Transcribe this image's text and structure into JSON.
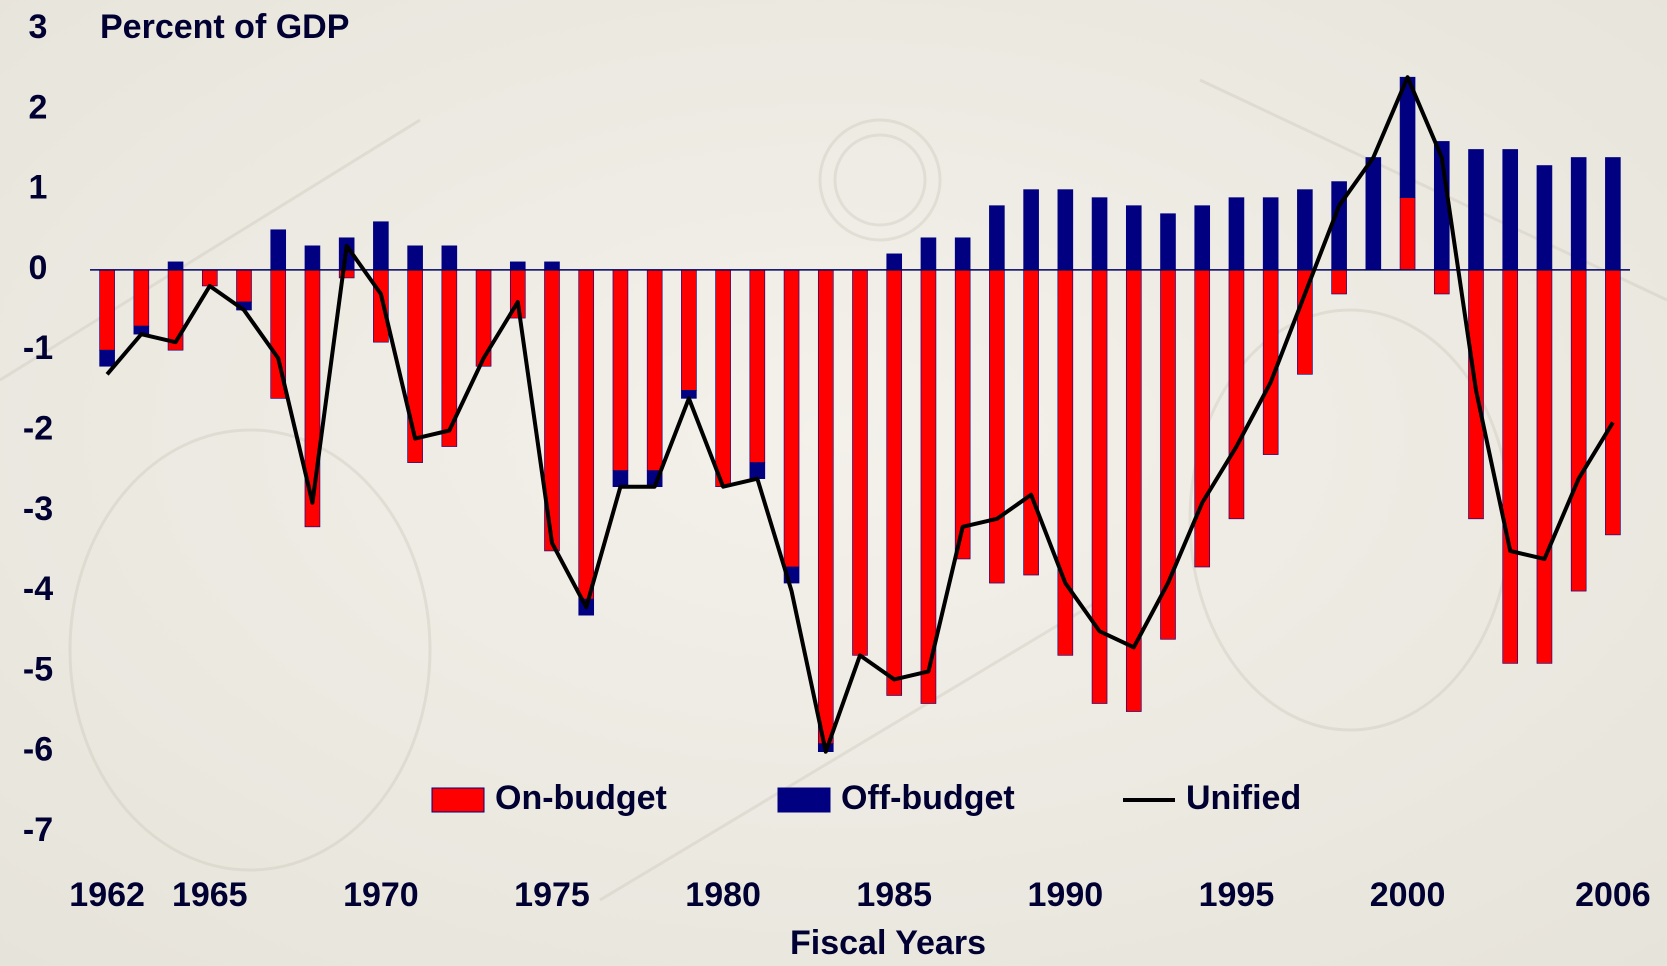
{
  "chart_data": {
    "type": "bar",
    "stacked": true,
    "title": "Percent of GDP",
    "x_label": "Fiscal Years",
    "x": [
      1962,
      1963,
      1964,
      1965,
      1966,
      1967,
      1968,
      1969,
      1970,
      1971,
      1972,
      1973,
      1974,
      1975,
      1976,
      1977,
      1978,
      1979,
      1980,
      1981,
      1982,
      1983,
      1984,
      1985,
      1986,
      1987,
      1988,
      1989,
      1990,
      1991,
      1992,
      1993,
      1994,
      1995,
      1996,
      1997,
      1998,
      1999,
      2000,
      2001,
      2002,
      2003,
      2004,
      2005,
      2006
    ],
    "series": [
      {
        "name": "On-budget",
        "color": "#ff0000",
        "type": "bar",
        "values": [
          -1.0,
          -0.7,
          -1.0,
          -0.2,
          -0.4,
          -1.6,
          -3.2,
          -0.1,
          -0.9,
          -2.4,
          -2.2,
          -1.2,
          -0.6,
          -3.5,
          -4.1,
          -2.5,
          -2.5,
          -1.5,
          -2.7,
          -2.4,
          -3.7,
          -5.9,
          -4.8,
          -5.3,
          -5.4,
          -3.6,
          -3.9,
          -3.8,
          -4.8,
          -5.4,
          -5.5,
          -4.6,
          -3.7,
          -3.1,
          -2.3,
          -1.3,
          -0.3,
          0,
          0.9,
          -0.3,
          -3.1,
          -4.9,
          -4.9,
          -4.0,
          -3.3
        ]
      },
      {
        "name": "Off-budget",
        "color": "#000080",
        "type": "bar",
        "values": [
          -0.2,
          -0.1,
          0.1,
          0,
          -0.1,
          0.5,
          0.3,
          0.4,
          0.6,
          0.3,
          0.3,
          0,
          0.1,
          0.1,
          -0.2,
          -0.2,
          -0.2,
          -0.1,
          0,
          -0.2,
          -0.2,
          -0.1,
          0,
          0.2,
          0.4,
          0.4,
          0.8,
          1.0,
          1.0,
          0.9,
          0.8,
          0.7,
          0.8,
          0.9,
          0.9,
          1.0,
          1.1,
          1.4,
          1.5,
          1.6,
          1.5,
          1.5,
          1.3,
          1.4,
          1.4
        ]
      },
      {
        "name": "Unified",
        "color": "#000000",
        "type": "line",
        "values": [
          -1.3,
          -0.8,
          -0.9,
          -0.2,
          -0.5,
          -1.1,
          -2.9,
          0.3,
          -0.3,
          -2.1,
          -2.0,
          -1.1,
          -0.4,
          -3.4,
          -4.2,
          -2.7,
          -2.7,
          -1.6,
          -2.7,
          -2.6,
          -4.0,
          -6.0,
          -4.8,
          -5.1,
          -5.0,
          -3.2,
          -3.1,
          -2.8,
          -3.9,
          -4.5,
          -4.7,
          -3.9,
          -2.9,
          -2.2,
          -1.4,
          -0.3,
          0.8,
          1.4,
          2.4,
          1.4,
          -1.5,
          -3.5,
          -3.6,
          -2.6,
          -1.9
        ]
      }
    ],
    "xlim": [
      1961.5,
      2006.5
    ],
    "xticks": [
      1962,
      1965,
      1970,
      1975,
      1980,
      1985,
      1990,
      1995,
      2000,
      2006
    ],
    "ylim": [
      -7,
      3
    ],
    "yticks": [
      -7,
      -6,
      -5,
      -4,
      -3,
      -2,
      -1,
      0,
      1,
      2,
      3
    ],
    "grid": false,
    "legend": "bottom"
  }
}
